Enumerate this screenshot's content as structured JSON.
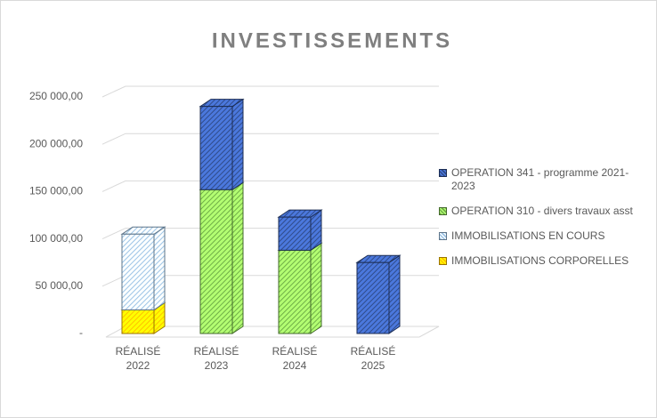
{
  "chart_data": {
    "type": "bar",
    "stacked": true,
    "title": "INVESTISSEMENTS",
    "categories": [
      "RÉALISÉ 2022",
      "RÉALISÉ 2023",
      "RÉALISÉ 2024",
      "RÉALISÉ 2025"
    ],
    "series": [
      {
        "name": "IMMOBILISATIONS CORPORELLES",
        "color": "#ffc000",
        "values": [
          25000,
          null,
          null,
          null
        ]
      },
      {
        "name": "IMMOBILISATIONS EN COURS",
        "color": "#9dc3e6",
        "values": [
          80000,
          null,
          null,
          null
        ]
      },
      {
        "name": "OPERATION 310  - divers travaux asst",
        "color": "#70ad47",
        "values": [
          null,
          152000,
          88000,
          null
        ]
      },
      {
        "name": "OPERATION 341 - programme 2021-2023",
        "color": "#2f4b8a",
        "values": [
          null,
          88000,
          35000,
          75000
        ]
      }
    ],
    "ylim": [
      0,
      250000
    ],
    "yticks": [
      {
        "value": 0,
        "label": "-"
      },
      {
        "value": 50000,
        "label": "50 000,00"
      },
      {
        "value": 100000,
        "label": "100 000,00"
      },
      {
        "value": 150000,
        "label": "150 000,00"
      },
      {
        "value": 200000,
        "label": "200 000,00"
      },
      {
        "value": 250000,
        "label": "250 000,00"
      }
    ],
    "grid": true,
    "legend": "right"
  }
}
